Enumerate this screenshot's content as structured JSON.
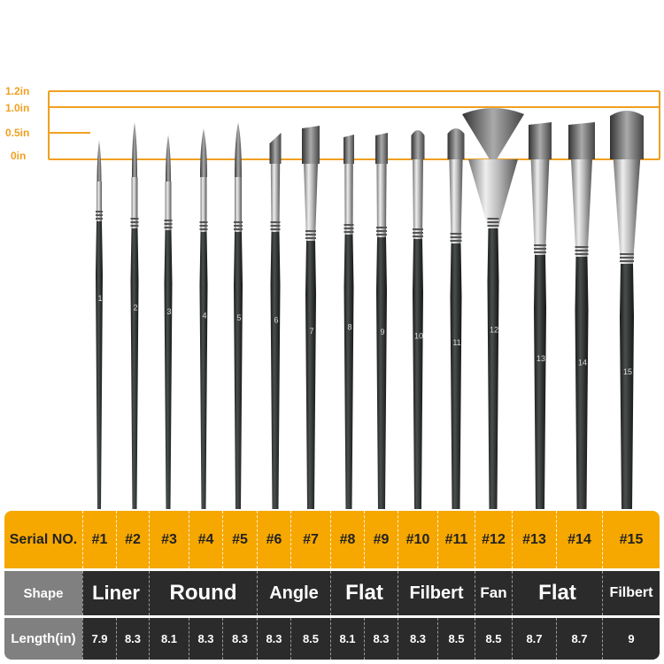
{
  "scale": {
    "labels": [
      "1.2in",
      "1.0in",
      "0.5in",
      "0in"
    ],
    "color": "#f0a020"
  },
  "brush_numbers": [
    "1",
    "2",
    "3",
    "4",
    "5",
    "6",
    "7",
    "8",
    "9",
    "10",
    "11",
    "12",
    "13",
    "14",
    "15"
  ],
  "table": {
    "serial_label": "Serial NO.",
    "serials": [
      "#1",
      "#2",
      "#3",
      "#4",
      "#5",
      "#6",
      "#7",
      "#8",
      "#9",
      "#10",
      "#11",
      "#12",
      "#13",
      "#14",
      "#15"
    ],
    "shape_label": "Shape",
    "shapes": [
      "Liner",
      "Round",
      "Angle",
      "Flat",
      "Filbert",
      "Fan",
      "Flat",
      "Filbert"
    ],
    "length_label": "Length(in)",
    "lengths": [
      "7.9",
      "8.3",
      "8.1",
      "8.3",
      "8.3",
      "8.3",
      "8.5",
      "8.1",
      "8.3",
      "8.3",
      "8.5",
      "8.5",
      "8.7",
      "8.7",
      "9"
    ],
    "header_color": "#f6a800",
    "dark_color": "#2b2b2b"
  }
}
